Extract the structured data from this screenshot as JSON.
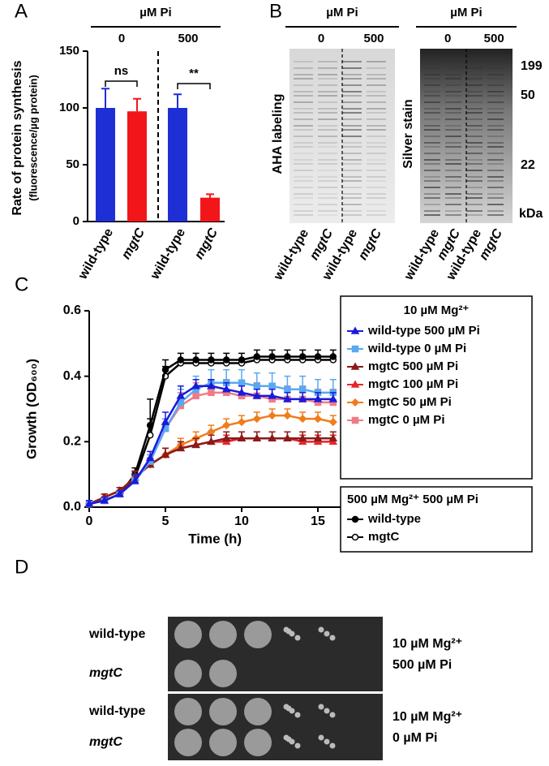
{
  "chart_data": [
    {
      "type": "bar",
      "panel": "A",
      "header": "µM Pi",
      "groups": [
        "0",
        "500"
      ],
      "ylabel": [
        "Rate of protein synthesis",
        "(fluorescence/µg protein)"
      ],
      "categories": [
        "wild-type",
        "mgtC",
        "wild-type",
        "mgtC"
      ],
      "values": [
        100,
        97,
        100,
        21
      ],
      "errors": [
        17,
        11,
        12,
        3
      ],
      "colors": [
        "#1f2fd6",
        "#f2161b",
        "#1f2fd6",
        "#f2161b"
      ],
      "annotations": [
        "ns",
        "**"
      ],
      "ylim": [
        0,
        150
      ],
      "yticks": [
        0,
        50,
        100,
        150
      ]
    },
    {
      "type": "line",
      "panel": "C",
      "ylabel": "Growth (OD₆₀₀)",
      "xlabel": "Time (h)",
      "x": [
        0,
        1,
        2,
        3,
        4,
        5,
        6,
        7,
        8,
        9,
        10,
        11,
        12,
        13,
        14,
        15,
        16
      ],
      "xlim": [
        0,
        16.5
      ],
      "xticks": [
        0,
        5,
        10,
        15
      ],
      "ylim": [
        0,
        0.6
      ],
      "yticks": [
        {
          "value": 0,
          "label": "0.0"
        },
        0.2,
        0.4,
        0.6
      ],
      "legend_groups": [
        "10 µM Mg²⁺",
        "500 µM Mg²⁺ 500 µM Pi"
      ],
      "series": [
        {
          "name": "wild-type 500 µM Pi",
          "color": "#1a1adb",
          "marker": "triangle",
          "legend_group": 0,
          "values": [
            0.01,
            0.02,
            0.04,
            0.08,
            0.15,
            0.26,
            0.34,
            0.37,
            0.37,
            0.36,
            0.35,
            0.34,
            0.34,
            0.33,
            0.33,
            0.33,
            0.33
          ],
          "errors": [
            0.01,
            0.01,
            0.01,
            0.02,
            0.02,
            0.03,
            0.03,
            0.02,
            0.02,
            0.02,
            0.02,
            0.02,
            0.02,
            0.02,
            0.02,
            0.02,
            0.02
          ]
        },
        {
          "name": "wild-type 0 µM Pi",
          "color": "#5aa9f0",
          "marker": "square",
          "legend_group": 0,
          "values": [
            0.01,
            0.02,
            0.04,
            0.08,
            0.14,
            0.24,
            0.32,
            0.36,
            0.38,
            0.38,
            0.38,
            0.37,
            0.37,
            0.36,
            0.36,
            0.35,
            0.35
          ],
          "errors": [
            0.01,
            0.01,
            0.01,
            0.02,
            0.02,
            0.03,
            0.04,
            0.04,
            0.04,
            0.04,
            0.04,
            0.04,
            0.04,
            0.04,
            0.04,
            0.04,
            0.04
          ]
        },
        {
          "name": "mgtC 500 µM Pi",
          "color": "#8b1a1a",
          "marker": "triangle",
          "legend_group": 0,
          "values": [
            0.01,
            0.03,
            0.05,
            0.09,
            0.13,
            0.16,
            0.18,
            0.19,
            0.2,
            0.21,
            0.21,
            0.21,
            0.21,
            0.21,
            0.21,
            0.21,
            0.21
          ],
          "errors": [
            0.01,
            0.01,
            0.01,
            0.02,
            0.02,
            0.02,
            0.02,
            0.02,
            0.02,
            0.02,
            0.02,
            0.02,
            0.02,
            0.02,
            0.02,
            0.02,
            0.02
          ]
        },
        {
          "name": "mgtC 100 µM Pi",
          "color": "#e8262a",
          "marker": "triangle",
          "legend_group": 0,
          "values": [
            0.01,
            0.03,
            0.05,
            0.09,
            0.13,
            0.16,
            0.18,
            0.19,
            0.2,
            0.2,
            0.21,
            0.21,
            0.21,
            0.21,
            0.2,
            0.2,
            0.2
          ],
          "errors": [
            0.01,
            0.01,
            0.01,
            0.02,
            0.02,
            0.02,
            0.02,
            0.02,
            0.02,
            0.02,
            0.02,
            0.02,
            0.02,
            0.02,
            0.02,
            0.02,
            0.02
          ]
        },
        {
          "name": "mgtC 50 µM Pi",
          "color": "#f07c1c",
          "marker": "diamond",
          "legend_group": 0,
          "values": [
            0.01,
            0.03,
            0.05,
            0.09,
            0.13,
            0.16,
            0.19,
            0.21,
            0.23,
            0.25,
            0.26,
            0.27,
            0.28,
            0.28,
            0.27,
            0.27,
            0.26
          ],
          "errors": [
            0.01,
            0.01,
            0.01,
            0.02,
            0.02,
            0.02,
            0.02,
            0.02,
            0.02,
            0.02,
            0.02,
            0.02,
            0.02,
            0.02,
            0.02,
            0.02,
            0.02
          ]
        },
        {
          "name": "mgtC 0 µM Pi",
          "color": "#f07b86",
          "marker": "square",
          "legend_group": 0,
          "values": [
            0.01,
            0.02,
            0.04,
            0.08,
            0.14,
            0.24,
            0.31,
            0.34,
            0.35,
            0.35,
            0.34,
            0.34,
            0.33,
            0.33,
            0.33,
            0.32,
            0.32
          ],
          "errors": [
            0.01,
            0.01,
            0.01,
            0.02,
            0.02,
            0.03,
            0.04,
            0.04,
            0.04,
            0.04,
            0.04,
            0.04,
            0.04,
            0.04,
            0.04,
            0.04,
            0.04
          ]
        },
        {
          "name": "wild-type",
          "color": "#000000",
          "marker": "circle",
          "legend_group": 1,
          "values": [
            0.01,
            0.02,
            0.04,
            0.1,
            0.25,
            0.42,
            0.45,
            0.45,
            0.45,
            0.45,
            0.45,
            0.46,
            0.46,
            0.46,
            0.46,
            0.46,
            0.46
          ],
          "errors": [
            0.01,
            0.01,
            0.01,
            0.02,
            0.08,
            0.03,
            0.02,
            0.02,
            0.02,
            0.02,
            0.02,
            0.02,
            0.02,
            0.02,
            0.02,
            0.02,
            0.02
          ]
        },
        {
          "name": "mgtC",
          "color": "#000000",
          "marker": "open-circle",
          "legend_group": 1,
          "values": [
            0.01,
            0.02,
            0.04,
            0.09,
            0.22,
            0.4,
            0.44,
            0.44,
            0.44,
            0.44,
            0.44,
            0.45,
            0.45,
            0.45,
            0.45,
            0.45,
            0.45
          ],
          "errors": [
            0.01,
            0.01,
            0.01,
            0.02,
            0.05,
            0.03,
            0.01,
            0.01,
            0.01,
            0.01,
            0.01,
            0.01,
            0.01,
            0.01,
            0.01,
            0.01,
            0.01
          ]
        }
      ]
    }
  ],
  "gels": {
    "panel": "B",
    "blots": [
      {
        "header": "µM Pi",
        "groups": [
          "0",
          "500"
        ],
        "title": "AHA labeling",
        "lanes": [
          "wild-type",
          "mgtC",
          "wild-type",
          "mgtC"
        ]
      },
      {
        "header": "µM Pi",
        "groups": [
          "0",
          "500"
        ],
        "title": "Silver stain",
        "lanes": [
          "wild-type",
          "mgtC",
          "wild-type",
          "mgtC"
        ],
        "markers": [
          "199",
          "50",
          "22"
        ],
        "unit": "kDa"
      }
    ]
  },
  "plates": {
    "panel": "D",
    "blocks": [
      {
        "rows": [
          "wild-type",
          "mgtC"
        ],
        "condition": [
          "10 µM Mg²⁺",
          "500 µM Pi"
        ]
      },
      {
        "rows": [
          "wild-type",
          "mgtC"
        ],
        "condition": [
          "10 µM Mg²⁺",
          "0 µM Pi"
        ]
      }
    ]
  }
}
